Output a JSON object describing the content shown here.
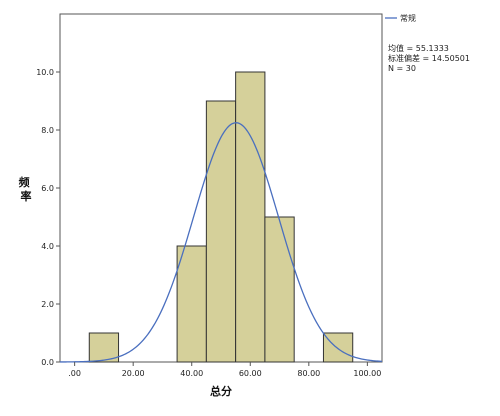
{
  "chart_data": {
    "type": "bar",
    "subtype": "histogram-with-normal-curve",
    "bins": [
      {
        "start": 5,
        "end": 15,
        "count": 1
      },
      {
        "start": 15,
        "end": 25,
        "count": 0
      },
      {
        "start": 25,
        "end": 35,
        "count": 0
      },
      {
        "start": 35,
        "end": 45,
        "count": 4
      },
      {
        "start": 45,
        "end": 55,
        "count": 9
      },
      {
        "start": 55,
        "end": 65,
        "count": 10
      },
      {
        "start": 65,
        "end": 75,
        "count": 5
      },
      {
        "start": 75,
        "end": 85,
        "count": 0
      },
      {
        "start": 85,
        "end": 95,
        "count": 1
      }
    ],
    "xlabel": "总分",
    "ylabel": "频率",
    "xlim": [
      -5,
      105
    ],
    "ylim": [
      0,
      12
    ],
    "xticks": [
      0,
      20,
      40,
      60,
      80,
      100
    ],
    "xtick_labels": [
      ".00",
      "20.00",
      "40.00",
      "60.00",
      "80.00",
      "100.00"
    ],
    "yticks": [
      0,
      2,
      4,
      6,
      8,
      10
    ],
    "ytick_labels": [
      "0.0",
      "2.0",
      "4.0",
      "6.0",
      "8.0",
      "10.0"
    ],
    "grid": false,
    "legend": {
      "placement": "right",
      "entry": "常规"
    },
    "normal_curve": {
      "mean": 55.1333,
      "std": 14.50501,
      "n": 30,
      "bin_width": 10
    },
    "stats_lines": [
      "均值 = 55.1333",
      "标准偏差 = 14.50501",
      "N = 30"
    ],
    "colors": {
      "bar_fill": "#d5d09a",
      "bar_stroke": "#333333",
      "curve": "#4a6fbf",
      "plot_bg": "#ffffff"
    }
  }
}
